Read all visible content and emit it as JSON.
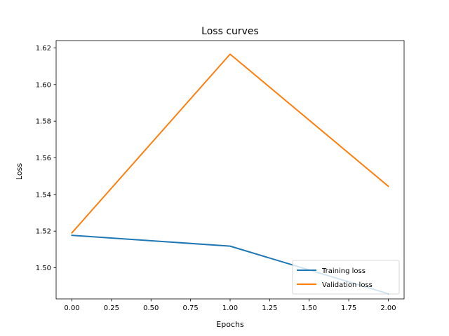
{
  "chart_data": {
    "type": "line",
    "title": "Loss curves",
    "xlabel": "Epochs",
    "ylabel": "Loss",
    "x": [
      0,
      1,
      2
    ],
    "xlim": [
      -0.1,
      2.1
    ],
    "ylim": [
      1.483,
      1.624
    ],
    "xticks": [
      "0.00",
      "0.25",
      "0.50",
      "0.75",
      "1.00",
      "1.25",
      "1.50",
      "1.75",
      "2.00"
    ],
    "xtick_values": [
      0,
      0.25,
      0.5,
      0.75,
      1.0,
      1.25,
      1.5,
      1.75,
      2.0
    ],
    "yticks": [
      "1.50",
      "1.52",
      "1.54",
      "1.56",
      "1.58",
      "1.60",
      "1.62"
    ],
    "ytick_values": [
      1.5,
      1.52,
      1.54,
      1.56,
      1.58,
      1.6,
      1.62
    ],
    "grid": false,
    "legend_position": "lower-right",
    "series": [
      {
        "name": "Training loss",
        "values": [
          1.5177,
          1.5118,
          1.4858
        ],
        "color": "#1f77b4"
      },
      {
        "name": "Validation loss",
        "values": [
          1.5191,
          1.6166,
          1.5445
        ],
        "color": "#ff7f0e"
      }
    ]
  }
}
